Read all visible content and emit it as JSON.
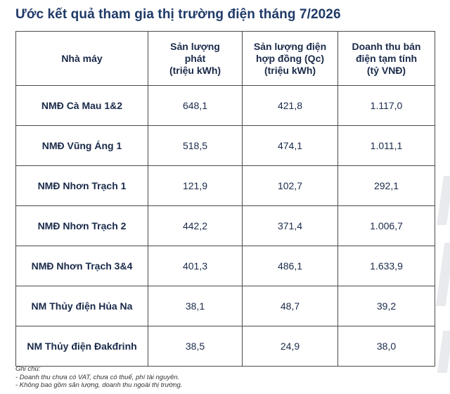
{
  "title": "Ước kết quả tham gia thị trường điện tháng 7/2026",
  "table": {
    "headers": [
      [
        "Nhà máy"
      ],
      [
        "Sản lượng",
        "phát",
        "(triệu kWh)"
      ],
      [
        "Sản lượng điện",
        "hợp đồng (Qc)",
        "(triệu kWh)"
      ],
      [
        "Doanh thu bán",
        "điện tạm tính",
        "(tỷ VNĐ)"
      ]
    ],
    "rows": [
      [
        "NMĐ Cà Mau 1&2",
        "648,1",
        "421,8",
        "1.117,0"
      ],
      [
        "NMĐ Vũng Áng 1",
        "518,5",
        "474,1",
        "1.011,1"
      ],
      [
        "NMĐ Nhơn Trạch 1",
        "121,9",
        "102,7",
        "292,1"
      ],
      [
        "NMĐ Nhơn Trạch 2",
        "442,2",
        "371,4",
        "1.006,7"
      ],
      [
        "NMĐ Nhơn Trạch 3&4",
        "401,3",
        "486,1",
        "1.633,9"
      ],
      [
        "NM Thủy điện Hủa Na",
        "38,1",
        "48,7",
        "39,2"
      ],
      [
        "NM Thủy điện Đakđrinh",
        "38,5",
        "24,9",
        "38,0"
      ]
    ]
  },
  "notes": {
    "heading": "Ghi chú:",
    "items": [
      "- Doanh thu chưa có VAT, chưa có thuế, phí tài nguyên.",
      "- Không bao gồm sản lượng, doanh thu ngoài thị trường."
    ]
  },
  "colors": {
    "title": "#1f3a68",
    "text": "#1a2a4a",
    "border": "#4a4a4a",
    "decoration": "#e8eaee"
  }
}
